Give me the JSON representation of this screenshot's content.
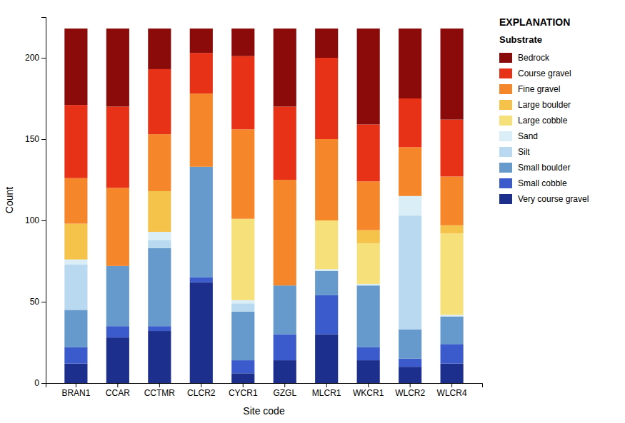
{
  "chart_data": {
    "type": "bar",
    "stacked": true,
    "grid": false,
    "legend": "right",
    "legend_title": "EXPLANATION",
    "legend_subtitle": "Substrate",
    "xlabel": "Site code",
    "ylabel": "Count",
    "ylim": [
      0,
      225
    ],
    "yticks": [
      0,
      50,
      100,
      150,
      200
    ],
    "categories": [
      "BRAN1",
      "CCAR",
      "CCTMR",
      "CLCR2",
      "CYCR1",
      "GZGL",
      "MLCR1",
      "WKCR1",
      "WLCR2",
      "WLCR4"
    ],
    "series": [
      {
        "name": "Very course gravel",
        "color": "#1c2f8c",
        "values": [
          12,
          28,
          32,
          62,
          6,
          14,
          30,
          14,
          10,
          12
        ]
      },
      {
        "name": "Small cobble",
        "color": "#3b5bcc",
        "values": [
          10,
          7,
          3,
          3,
          8,
          16,
          24,
          8,
          5,
          12
        ]
      },
      {
        "name": "Small boulder",
        "color": "#6699cc",
        "values": [
          23,
          37,
          48,
          68,
          30,
          30,
          15,
          38,
          18,
          17
        ]
      },
      {
        "name": "Silt",
        "color": "#b8d9f0",
        "values": [
          28,
          0,
          5,
          0,
          5,
          0,
          0,
          0,
          70,
          0
        ]
      },
      {
        "name": "Sand",
        "color": "#daeef8",
        "values": [
          3,
          0,
          5,
          0,
          2,
          0,
          1,
          1,
          12,
          1
        ]
      },
      {
        "name": "Large cobble",
        "color": "#f5e07a",
        "values": [
          0,
          0,
          0,
          0,
          50,
          0,
          30,
          25,
          0,
          50
        ]
      },
      {
        "name": "Large boulder",
        "color": "#f5c24a",
        "values": [
          22,
          0,
          25,
          0,
          0,
          0,
          0,
          8,
          0,
          5
        ]
      },
      {
        "name": "Fine gravel",
        "color": "#f5862a",
        "values": [
          28,
          48,
          35,
          45,
          55,
          65,
          50,
          30,
          30,
          30
        ]
      },
      {
        "name": "Course gravel",
        "color": "#e83218",
        "values": [
          45,
          50,
          40,
          25,
          45,
          45,
          50,
          35,
          30,
          35
        ]
      },
      {
        "name": "Bedrock",
        "color": "#8b0a0a",
        "values": [
          47,
          48,
          25,
          15,
          17,
          48,
          18,
          59,
          43,
          56
        ]
      }
    ]
  }
}
